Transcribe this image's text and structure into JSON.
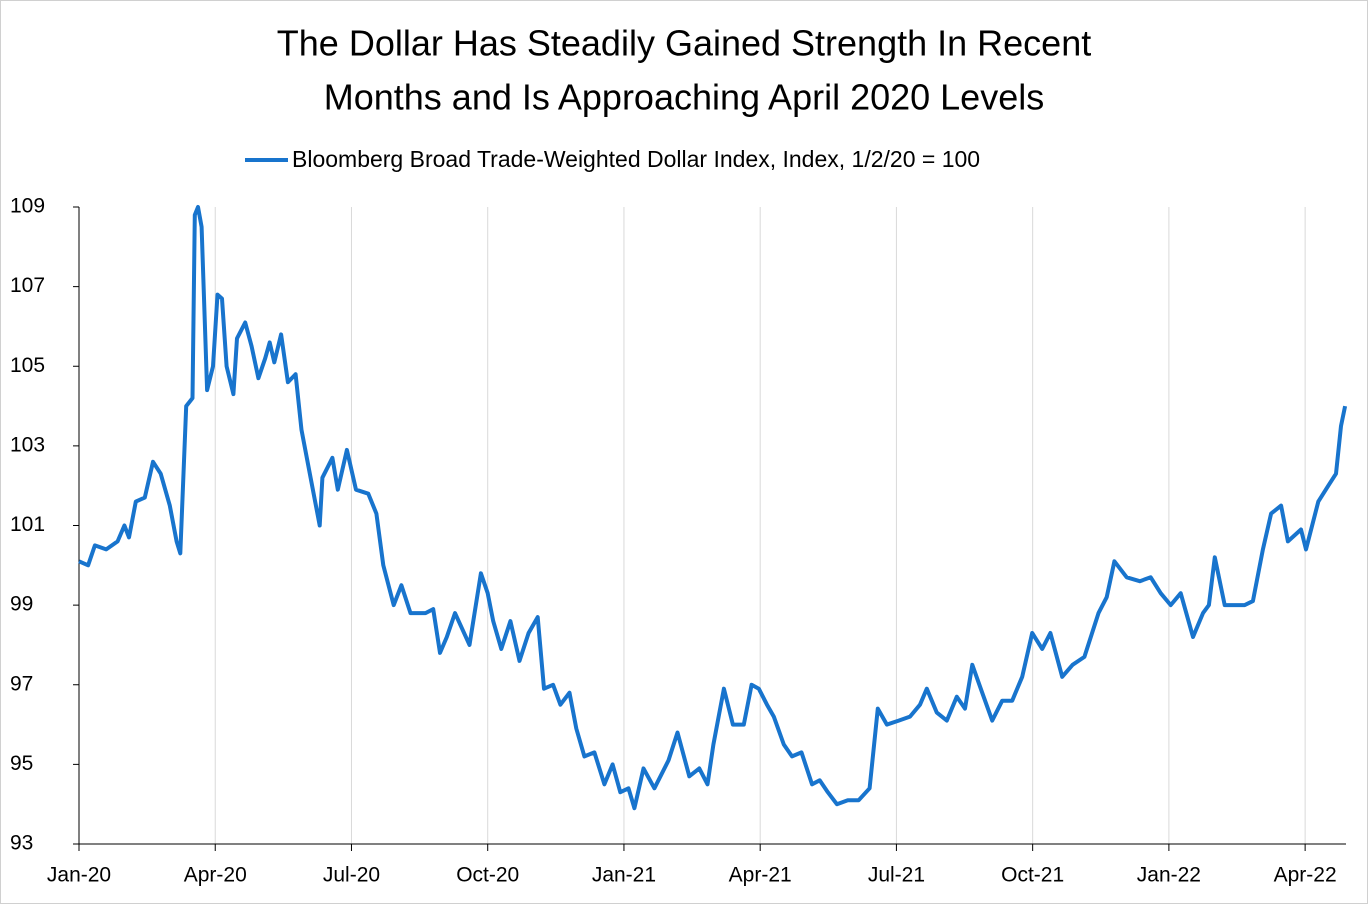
{
  "chart_data": {
    "type": "line",
    "title": [
      "The Dollar Has Steadily Gained Strength In Recent",
      "Months and Is Approaching April 2020 Levels"
    ],
    "x": [
      0,
      0.2,
      0.35,
      0.6,
      0.85,
      1.0,
      1.1,
      1.25,
      1.45,
      1.63,
      1.8,
      2.0,
      2.15,
      2.23,
      2.36,
      2.5,
      2.55,
      2.62,
      2.7,
      2.82,
      2.95,
      3.05,
      3.15,
      3.25,
      3.4,
      3.48,
      3.66,
      3.8,
      3.95,
      4.1,
      4.2,
      4.3,
      4.45,
      4.6,
      4.77,
      4.9,
      5.1,
      5.3,
      5.36,
      5.58,
      5.7,
      5.9,
      6.1,
      6.37,
      6.55,
      6.7,
      6.93,
      7.1,
      7.3,
      7.63,
      7.8,
      7.95,
      8.1,
      8.28,
      8.6,
      8.85,
      9.0,
      9.12,
      9.3,
      9.5,
      9.7,
      9.9,
      10.1,
      10.24,
      10.44,
      10.6,
      10.8,
      10.95,
      11.13,
      11.35,
      11.57,
      11.75,
      11.92,
      12.1,
      12.23,
      12.43,
      12.67,
      12.98,
      13.18,
      13.44,
      13.66,
      13.84,
      13.97,
      14.2,
      14.4,
      14.64,
      14.81,
      14.97,
      15.15,
      15.3,
      15.52,
      15.7,
      15.91,
      16.14,
      16.31,
      16.49,
      16.69,
      16.93,
      17.17,
      17.41,
      17.59,
      17.79,
      18.05,
      18.3,
      18.52,
      18.67,
      18.89,
      19.11,
      19.33,
      19.51,
      19.67,
      19.89,
      20.11,
      20.33,
      20.55,
      20.77,
      20.99,
      21.21,
      21.39,
      21.65,
      21.88,
      22.14,
      22.45,
      22.63,
      22.8,
      23.07,
      23.36,
      23.6,
      23.82,
      24.04,
      24.26,
      24.53,
      24.75,
      24.88,
      25.01,
      25.23,
      25.45,
      25.67,
      25.85,
      26.07,
      26.25,
      26.47,
      26.62,
      26.91,
      27.02,
      27.29,
      27.51,
      27.68,
      27.79,
      27.88
    ],
    "series": [
      {
        "name": "Bloomberg Broad Trade-Weighted Dollar Index, Index, 1/2/20 = 100",
        "color": "#1874cd",
        "values": [
          100.1,
          100.0,
          100.5,
          100.4,
          100.6,
          101.0,
          100.7,
          101.6,
          101.7,
          102.6,
          102.3,
          101.5,
          100.6,
          100.3,
          104.0,
          104.2,
          108.8,
          109.0,
          108.5,
          104.4,
          105.0,
          106.8,
          106.7,
          105.0,
          104.3,
          105.7,
          106.1,
          105.5,
          104.7,
          105.2,
          105.6,
          105.1,
          105.8,
          104.6,
          104.8,
          103.4,
          102.2,
          101.0,
          102.2,
          102.7,
          101.9,
          102.9,
          101.9,
          101.8,
          101.3,
          100.0,
          99.0,
          99.5,
          98.8,
          98.8,
          98.9,
          97.8,
          98.2,
          98.8,
          98.0,
          99.8,
          99.3,
          98.6,
          97.9,
          98.6,
          97.6,
          98.3,
          98.7,
          96.9,
          97.0,
          96.5,
          96.8,
          95.9,
          95.2,
          95.3,
          94.5,
          95.0,
          94.3,
          94.4,
          93.9,
          94.9,
          94.4,
          95.1,
          95.8,
          94.7,
          94.9,
          94.5,
          95.5,
          96.9,
          96.0,
          96.0,
          97.0,
          96.9,
          96.5,
          96.2,
          95.5,
          95.2,
          95.3,
          94.5,
          94.6,
          94.3,
          94.0,
          94.1,
          94.1,
          94.4,
          96.4,
          96.0,
          96.1,
          96.2,
          96.5,
          96.9,
          96.3,
          96.1,
          96.7,
          96.4,
          97.5,
          96.8,
          96.1,
          96.6,
          96.6,
          97.2,
          98.3,
          97.9,
          98.3,
          97.2,
          97.5,
          97.7,
          98.8,
          99.2,
          100.1,
          99.7,
          99.6,
          99.7,
          99.3,
          99.0,
          99.3,
          98.2,
          98.8,
          99.0,
          100.2,
          99.0,
          99.0,
          99.0,
          99.1,
          100.4,
          101.3,
          101.5,
          100.6,
          100.9,
          100.4,
          101.6,
          102.0,
          102.3,
          103.5,
          104.0
        ]
      }
    ],
    "xlim": [
      0,
      27.9
    ],
    "xticks": [
      {
        "value": 0,
        "label": "Jan-20"
      },
      {
        "value": 3,
        "label": "Apr-20"
      },
      {
        "value": 6,
        "label": "Jul-20"
      },
      {
        "value": 9,
        "label": "Oct-20"
      },
      {
        "value": 12,
        "label": "Jan-21"
      },
      {
        "value": 15,
        "label": "Apr-21"
      },
      {
        "value": 18,
        "label": "Jul-21"
      },
      {
        "value": 21,
        "label": "Oct-21"
      },
      {
        "value": 24,
        "label": "Jan-22"
      },
      {
        "value": 27,
        "label": "Apr-22"
      }
    ],
    "ylim": [
      93,
      109
    ],
    "yticks": [
      93,
      95,
      97,
      99,
      101,
      103,
      105,
      107,
      109
    ],
    "grid": "x"
  }
}
